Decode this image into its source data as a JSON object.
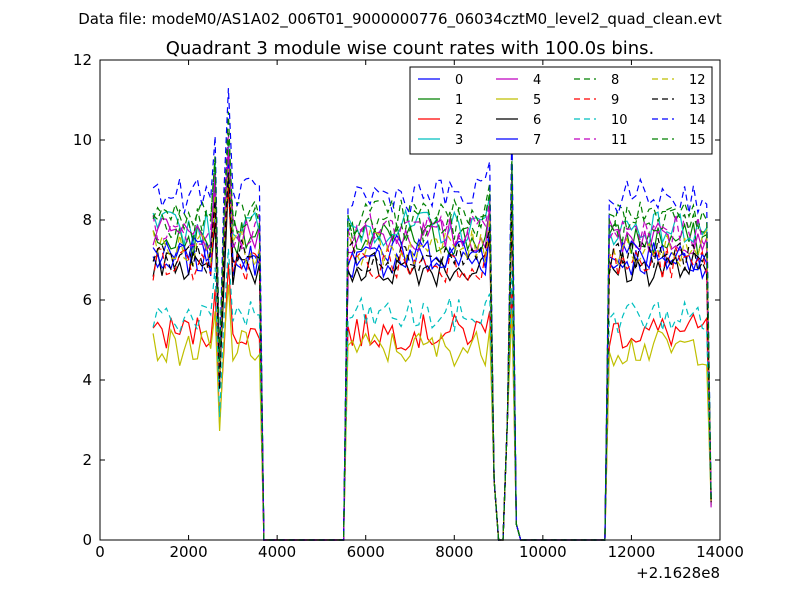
{
  "header": {
    "suptitle": "Data file: modeM0/AS1A02_006T01_9000000776_06034cztM0_level2_quad_clean.evt"
  },
  "chart_data": {
    "type": "line",
    "title": "Quadrant 3 module wise count rates with 100.0s bins.",
    "xlabel": "",
    "ylabel": "",
    "x_offset_label": "+2.1628e8",
    "xlim": [
      0,
      14000
    ],
    "ylim": [
      0,
      12
    ],
    "x_ticks": [
      0,
      2000,
      4000,
      6000,
      8000,
      10000,
      12000,
      14000
    ],
    "y_ticks": [
      0,
      2,
      4,
      6,
      8,
      10,
      12
    ],
    "grid": false,
    "legend_placement": "top-right",
    "legend_columns": 4,
    "series": [
      {
        "name": "0",
        "color": "#0000ff",
        "dash": "solid",
        "baseline": 7.0
      },
      {
        "name": "1",
        "color": "#008000",
        "dash": "solid",
        "baseline": 7.5
      },
      {
        "name": "2",
        "color": "#ff0000",
        "dash": "solid",
        "baseline": 5.2
      },
      {
        "name": "3",
        "color": "#00bfbf",
        "dash": "solid",
        "baseline": 7.8
      },
      {
        "name": "4",
        "color": "#bf00bf",
        "dash": "solid",
        "baseline": 7.6
      },
      {
        "name": "5",
        "color": "#bfbf00",
        "dash": "solid",
        "baseline": 4.8
      },
      {
        "name": "6",
        "color": "#000000",
        "dash": "solid",
        "baseline": 6.8
      },
      {
        "name": "7",
        "color": "#0000ff",
        "dash": "solid",
        "baseline": 7.2
      },
      {
        "name": "8",
        "color": "#008000",
        "dash": "dashed",
        "baseline": 8.1
      },
      {
        "name": "9",
        "color": "#ff0000",
        "dash": "dashed",
        "baseline": 6.9
      },
      {
        "name": "10",
        "color": "#00bfbf",
        "dash": "dashed",
        "baseline": 5.6
      },
      {
        "name": "11",
        "color": "#bf00bf",
        "dash": "dashed",
        "baseline": 7.7
      },
      {
        "name": "12",
        "color": "#bfbf00",
        "dash": "dashed",
        "baseline": 7.3
      },
      {
        "name": "13",
        "color": "#000000",
        "dash": "dashed",
        "baseline": 7.1
      },
      {
        "name": "14",
        "color": "#0000ff",
        "dash": "dashed",
        "baseline": 8.6
      },
      {
        "name": "15",
        "color": "#008000",
        "dash": "dashed",
        "baseline": 7.9
      }
    ],
    "segments": [
      {
        "start": 1200,
        "end": 3700,
        "on": true,
        "bin": 100
      },
      {
        "start": 3700,
        "end": 5600,
        "on": false,
        "bin": 100
      },
      {
        "start": 5600,
        "end": 8800,
        "on": true,
        "bin": 100
      },
      {
        "start": 8800,
        "end": 9000,
        "on": "drop",
        "bin": 100
      },
      {
        "start": 9000,
        "end": 9200,
        "on": false,
        "bin": 100
      },
      {
        "start": 9200,
        "end": 9500,
        "on": "spike",
        "bin": 100
      },
      {
        "start": 9500,
        "end": 11500,
        "on": false,
        "bin": 100
      },
      {
        "start": 11500,
        "end": 13800,
        "on": true,
        "bin": 100
      }
    ],
    "spikes": [
      {
        "x": 2600,
        "factor": 1.18
      },
      {
        "x": 2700,
        "factor": 0.55
      },
      {
        "x": 2900,
        "factor": 1.3
      },
      {
        "x": 8800,
        "factor": 1.1
      },
      {
        "x": 9300,
        "factor": 1.3
      }
    ]
  }
}
